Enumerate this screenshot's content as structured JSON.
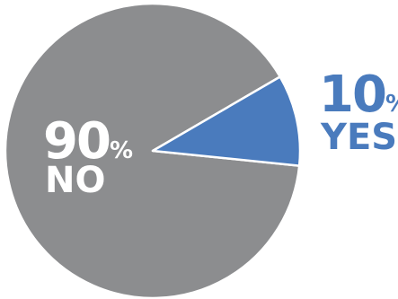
{
  "chart_data": {
    "type": "pie",
    "slices": [
      {
        "category": "NO",
        "value": 90,
        "value_label": "90",
        "unit": "%",
        "color": "#8c8d8f",
        "label_color": "#ffffff"
      },
      {
        "category": "YES",
        "value": 10,
        "value_label": "10",
        "unit": "%",
        "color": "#4a7bbd",
        "label_color": "#4a7bbd"
      }
    ],
    "slice_border_color": "#ffffff"
  }
}
